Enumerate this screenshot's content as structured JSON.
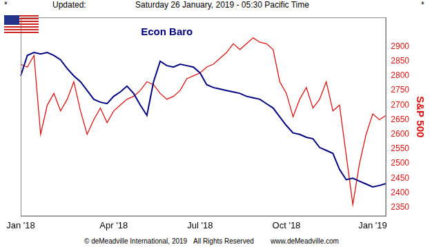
{
  "header": {
    "left_mark": "*",
    "label": "Updated:",
    "timestamp": "Saturday 26 January, 2019 - 05:30 Pacific Time",
    "right_mark": "*"
  },
  "footer": [
    "© deMeadville International, 2019",
    "All Rights Reserved",
    "www.deMeadville.com"
  ],
  "chart_data": {
    "type": "line",
    "categories": [
      "Jan '18",
      null,
      null,
      null,
      null,
      null,
      null,
      null,
      null,
      null,
      null,
      null,
      null,
      null,
      "Apr '18",
      null,
      null,
      null,
      null,
      null,
      null,
      null,
      null,
      null,
      null,
      null,
      null,
      "Jul '18",
      null,
      null,
      null,
      null,
      null,
      null,
      null,
      null,
      null,
      null,
      null,
      null,
      "Oct '18",
      null,
      null,
      null,
      null,
      null,
      null,
      null,
      null,
      null,
      null,
      null,
      null,
      "Jan '19",
      null,
      null
    ],
    "series": [
      {
        "name": "Econ Baro",
        "color": "#000080",
        "values": [
          2800,
          2870,
          2880,
          2875,
          2880,
          2870,
          2855,
          2825,
          2800,
          2780,
          2750,
          2720,
          2710,
          2705,
          2730,
          2745,
          2765,
          2740,
          2700,
          2665,
          2780,
          2850,
          2835,
          2830,
          2840,
          2835,
          2830,
          2810,
          2770,
          2760,
          2755,
          2750,
          2745,
          2740,
          2730,
          2725,
          2720,
          2705,
          2690,
          2660,
          2630,
          2605,
          2600,
          2590,
          2585,
          2555,
          2545,
          2535,
          2480,
          2445,
          2450,
          2440,
          2430,
          2420,
          2425,
          2432
        ]
      },
      {
        "name": "S&P 500",
        "color": "#dd1111",
        "values": [
          2840,
          2830,
          2870,
          2600,
          2700,
          2740,
          2680,
          2720,
          2780,
          2680,
          2600,
          2650,
          2690,
          2640,
          2680,
          2700,
          2720,
          2730,
          2750,
          2780,
          2770,
          2740,
          2720,
          2730,
          2750,
          2790,
          2800,
          2810,
          2830,
          2840,
          2860,
          2880,
          2910,
          2890,
          2910,
          2930,
          2915,
          2910,
          2890,
          2780,
          2740,
          2660,
          2720,
          2760,
          2690,
          2720,
          2780,
          2680,
          2700,
          2530,
          2360,
          2500,
          2600,
          2670,
          2650,
          2665
        ]
      }
    ],
    "ylim": [
      2320,
      3000
    ],
    "yticks": [
      2350,
      2400,
      2450,
      2500,
      2550,
      2600,
      2650,
      2700,
      2750,
      2800,
      2850,
      2900
    ],
    "grid": false
  }
}
